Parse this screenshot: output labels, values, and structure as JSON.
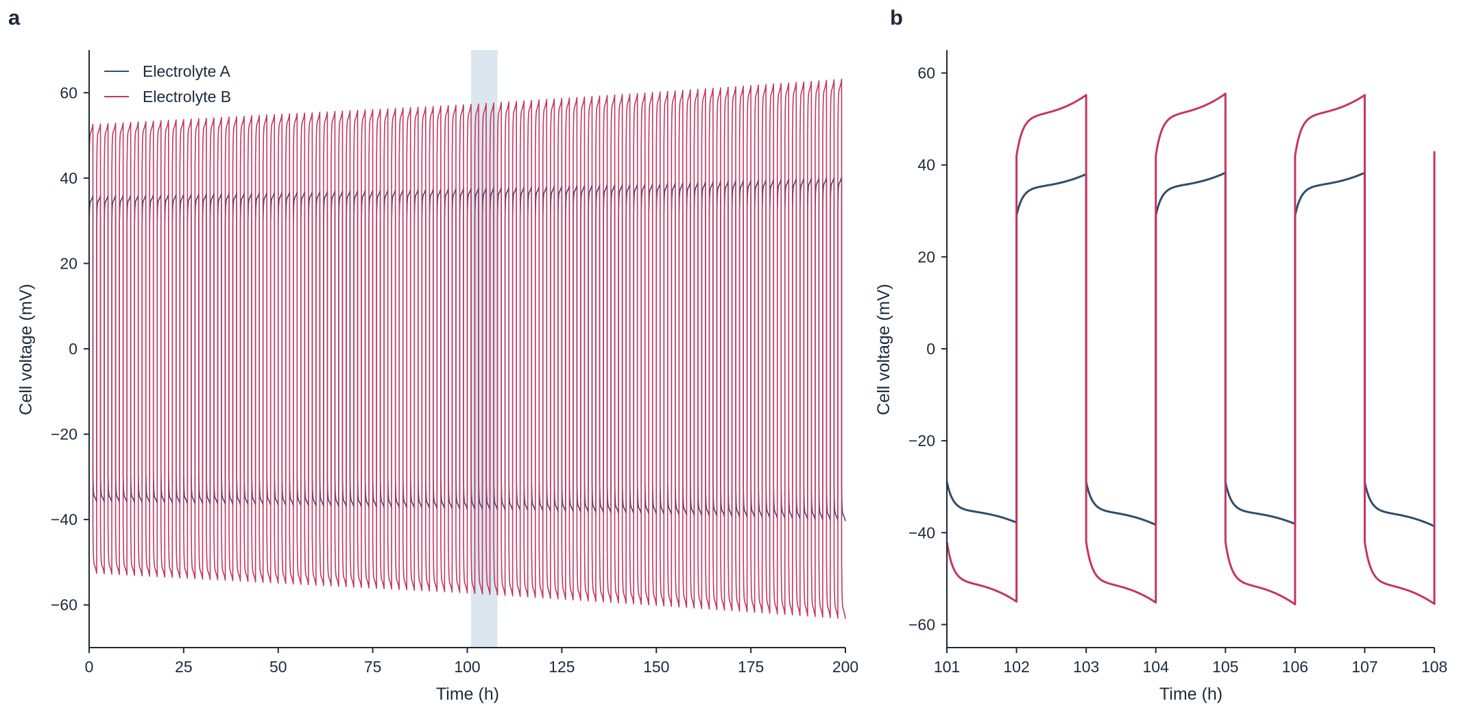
{
  "colors": {
    "electrolyte_a": "#2f4d6e",
    "electrolyte_b": "#c4365f",
    "highlight": "#dce6ee",
    "axis": "#1b2a3c"
  },
  "legend": [
    "Electrolyte A",
    "Electrolyte B"
  ],
  "chart_data": [
    {
      "panel": "a",
      "type": "line",
      "xlabel": "Time (h)",
      "ylabel": "Cell voltage (mV)",
      "xlim": [
        0,
        200
      ],
      "ylim": [
        -70,
        70
      ],
      "xticks": [
        0,
        25,
        50,
        75,
        100,
        125,
        150,
        175,
        200
      ],
      "yticks": [
        -60,
        -40,
        -20,
        0,
        20,
        40,
        60
      ],
      "grid": false,
      "legend_position": "top-left",
      "highlight_region": [
        101,
        108
      ],
      "cycle_period_h": 2,
      "series": [
        {
          "name": "Electrolyte A",
          "color_key": "electrolyte_a",
          "x": [
            0,
            50,
            100,
            150,
            200
          ],
          "plateau_mV": [
            34.5,
            35.3,
            36.2,
            37.3,
            38.8
          ]
        },
        {
          "name": "Electrolyte B",
          "color_key": "electrolyte_b",
          "x": [
            0,
            50,
            100,
            150,
            200
          ],
          "plateau_mV": [
            50.5,
            52.8,
            55.0,
            57.8,
            60.8
          ]
        }
      ]
    },
    {
      "panel": "b",
      "type": "line",
      "xlabel": "Time (h)",
      "ylabel": "Cell voltage (mV)",
      "xlim": [
        101,
        108
      ],
      "ylim": [
        -65,
        65
      ],
      "xticks": [
        101,
        102,
        103,
        104,
        105,
        106,
        107,
        108
      ],
      "yticks": [
        -60,
        -40,
        -20,
        0,
        20,
        40,
        60
      ],
      "grid": false,
      "series": [
        {
          "name": "Electrolyte A",
          "color_key": "electrolyte_a",
          "segments": [
            {
              "t0": 101,
              "t1": 102,
              "sign": -1,
              "start": 29,
              "plateau": 35.2,
              "end": 37.8
            },
            {
              "t0": 102,
              "t1": 103,
              "sign": 1,
              "start": 29,
              "plateau": 35.2,
              "end": 38.0
            },
            {
              "t0": 103,
              "t1": 104,
              "sign": -1,
              "start": 29,
              "plateau": 35.4,
              "end": 38.3
            },
            {
              "t0": 104,
              "t1": 105,
              "sign": 1,
              "start": 29,
              "plateau": 35.4,
              "end": 38.3
            },
            {
              "t0": 105,
              "t1": 106,
              "sign": -1,
              "start": 29,
              "plateau": 35.5,
              "end": 38.1
            },
            {
              "t0": 106,
              "t1": 107,
              "sign": 1,
              "start": 29,
              "plateau": 35.5,
              "end": 38.3
            },
            {
              "t0": 107,
              "t1": 108,
              "sign": -1,
              "start": 29,
              "plateau": 35.6,
              "end": 38.6
            }
          ]
        },
        {
          "name": "Electrolyte B",
          "color_key": "electrolyte_b",
          "segments": [
            {
              "t0": 101,
              "t1": 102,
              "sign": -1,
              "start": 42,
              "plateau": 50.8,
              "end": 55.0
            },
            {
              "t0": 102,
              "t1": 103,
              "sign": 1,
              "start": 42,
              "plateau": 50.8,
              "end": 55.2
            },
            {
              "t0": 103,
              "t1": 104,
              "sign": -1,
              "start": 42,
              "plateau": 51.0,
              "end": 55.2
            },
            {
              "t0": 104,
              "t1": 105,
              "sign": 1,
              "start": 42,
              "plateau": 51.0,
              "end": 55.5
            },
            {
              "t0": 105,
              "t1": 106,
              "sign": -1,
              "start": 42,
              "plateau": 51.2,
              "end": 55.6
            },
            {
              "t0": 106,
              "t1": 107,
              "sign": 1,
              "start": 42,
              "plateau": 51.0,
              "end": 55.2
            },
            {
              "t0": 107,
              "t1": 108,
              "sign": -1,
              "start": 42,
              "plateau": 51.2,
              "end": 55.5
            },
            {
              "t0": 108,
              "t1": 108,
              "sign": 1,
              "start": 43,
              "plateau": 43,
              "end": 43
            }
          ]
        }
      ]
    }
  ]
}
